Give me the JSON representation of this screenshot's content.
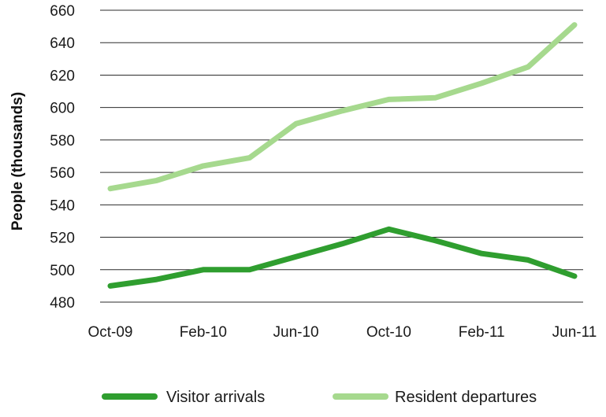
{
  "chart_data": {
    "type": "line",
    "title": "",
    "xlabel": "",
    "ylabel": "People (thousands)",
    "ylim": [
      480,
      660
    ],
    "yticks": [
      480,
      500,
      520,
      540,
      560,
      580,
      600,
      620,
      640,
      660
    ],
    "x_tick_labels": [
      "Oct-09",
      "Feb-10",
      "Jun-10",
      "Oct-10",
      "Feb-11",
      "Jun-11"
    ],
    "x": [
      "Oct-09",
      "Dec-09",
      "Feb-10",
      "Apr-10",
      "Jun-10",
      "Aug-10",
      "Oct-10",
      "Dec-10",
      "Feb-11",
      "Apr-11",
      "Jun-11"
    ],
    "grid": true,
    "legend_position": "bottom",
    "series": [
      {
        "name": "Visitor arrivals",
        "color": "#2f9e2f",
        "values": [
          490,
          494,
          500,
          500,
          508,
          516,
          525,
          518,
          510,
          506,
          496
        ]
      },
      {
        "name": "Resident departures",
        "color": "#a6d98e",
        "values": [
          550,
          555,
          564,
          569,
          590,
          598,
          605,
          606,
          615,
          625,
          651
        ]
      }
    ]
  }
}
